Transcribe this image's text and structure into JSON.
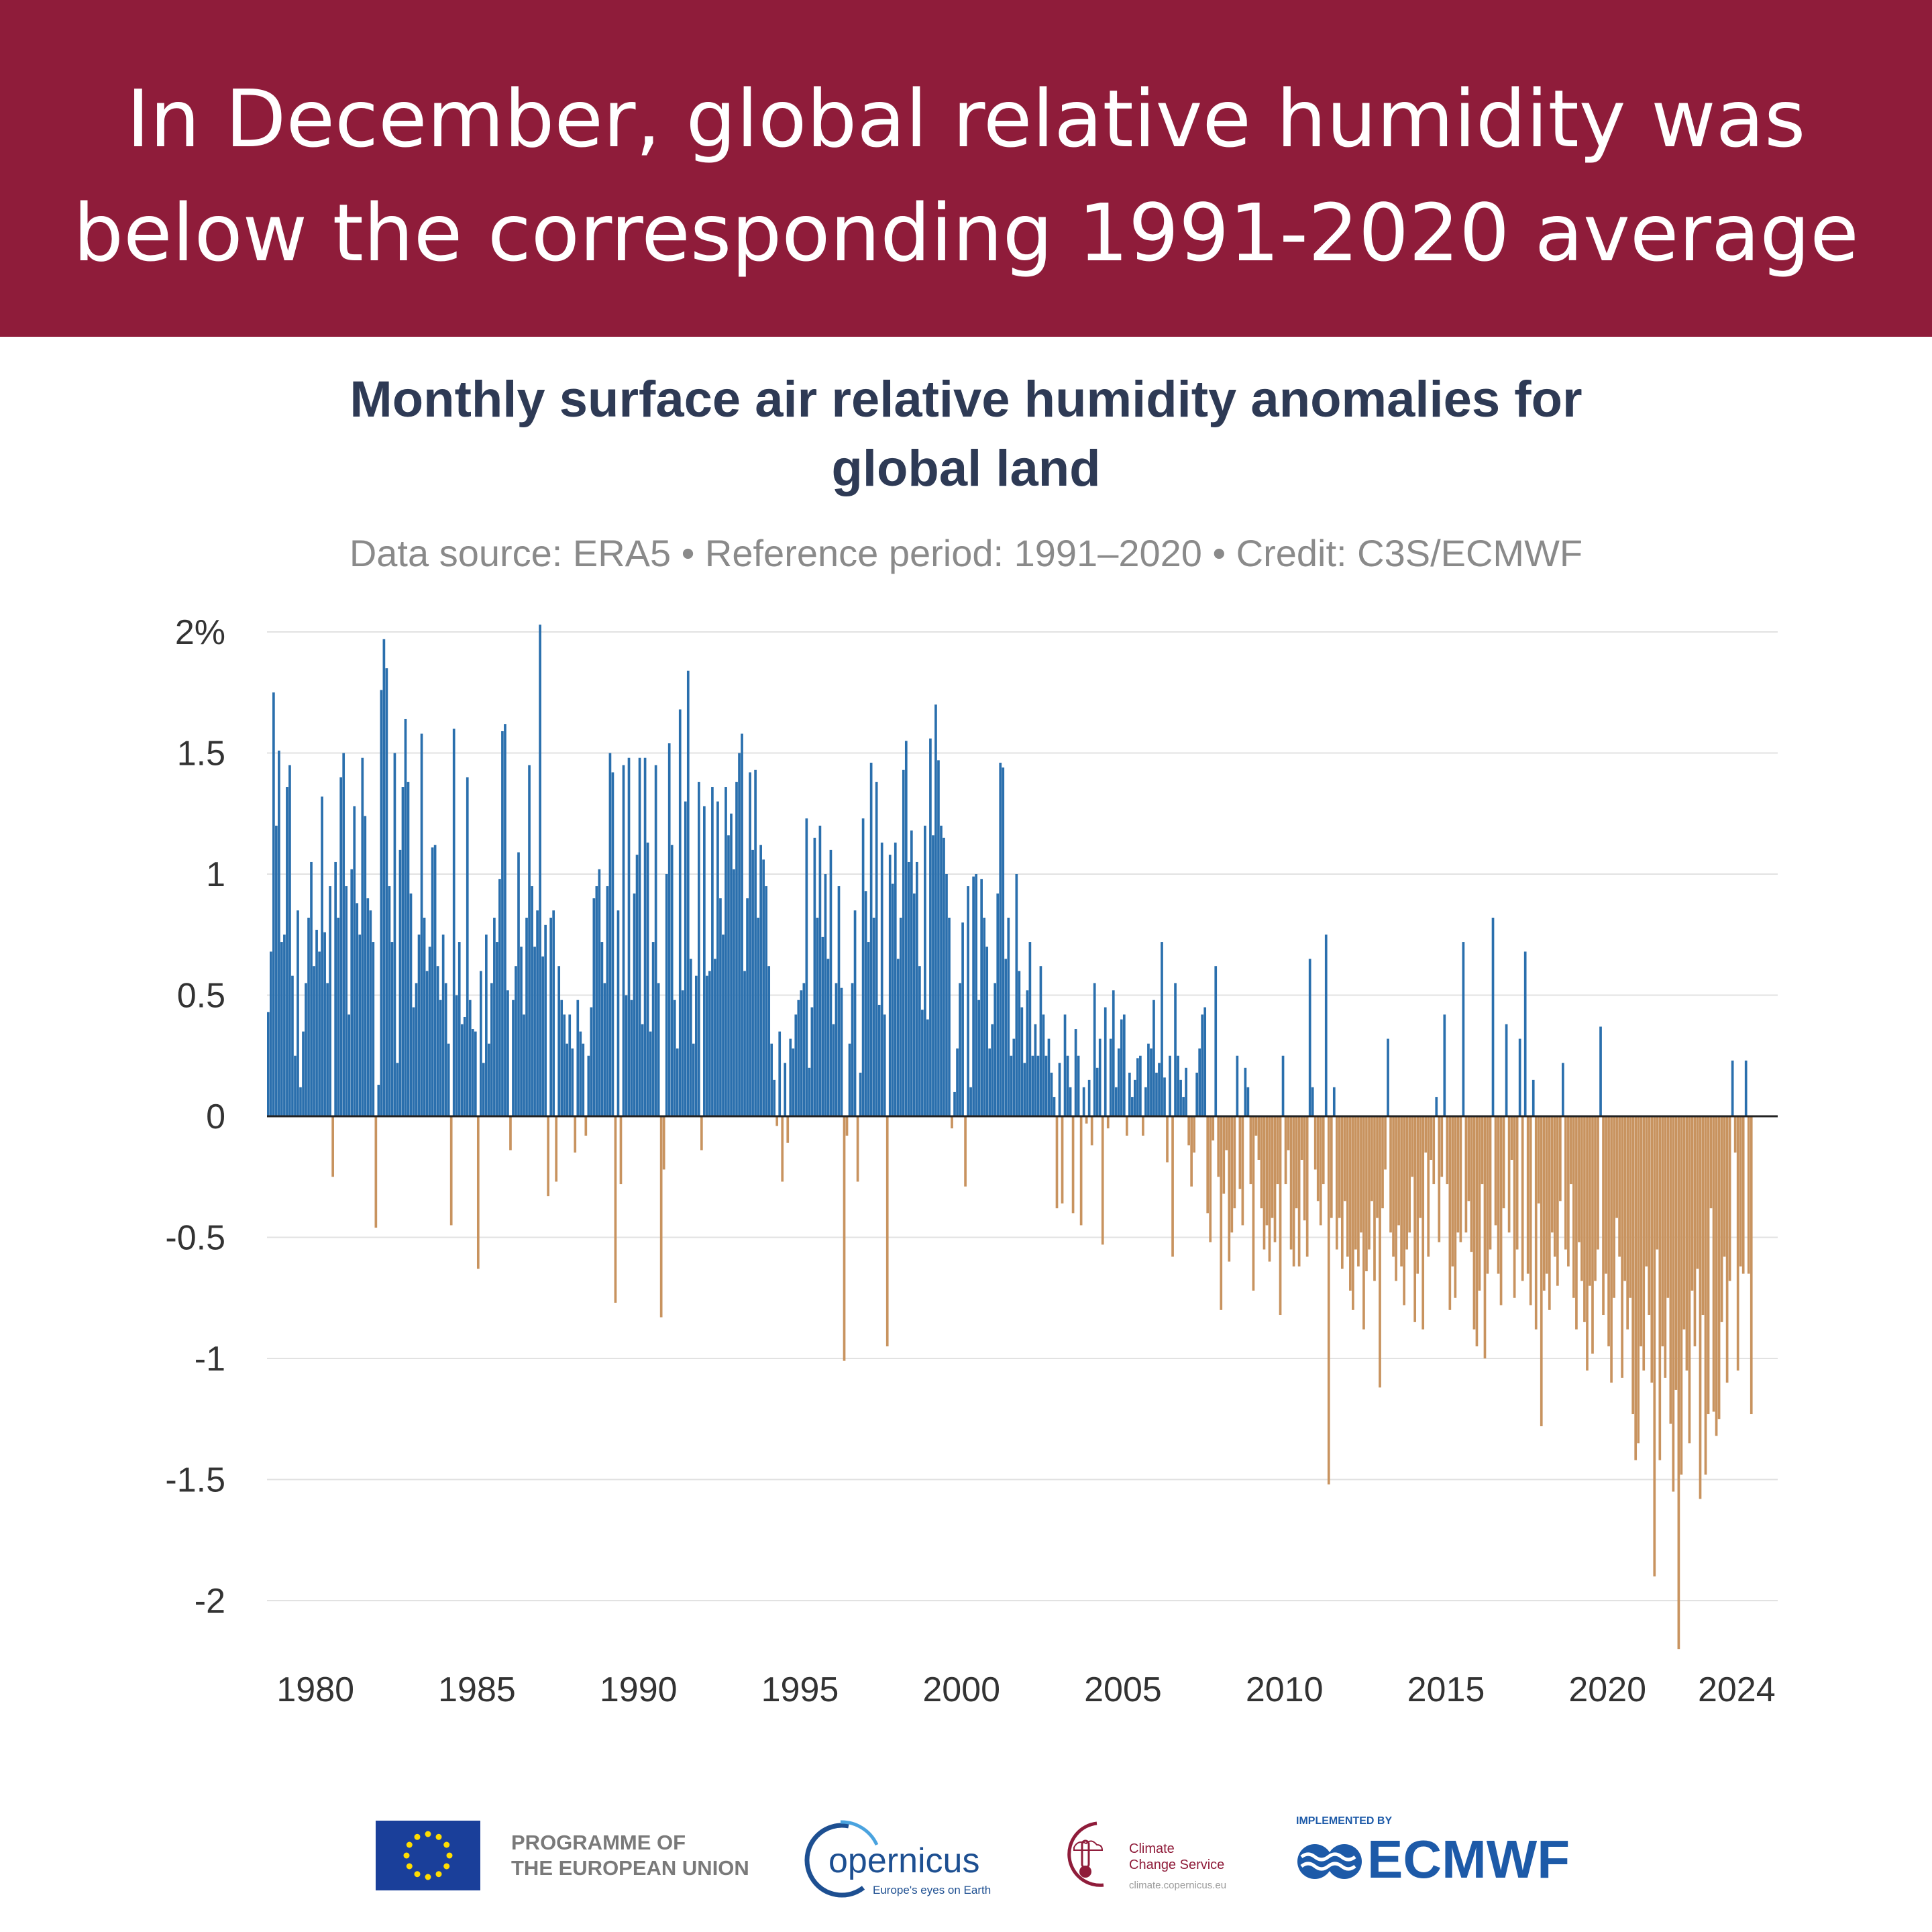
{
  "banner": {
    "line1": "In December, global relative humidity was",
    "line2": "below the corresponding 1991-2020 average",
    "background": "#8f1c3a"
  },
  "colors": {
    "positive": "#2a6fad",
    "negative": "#c8935f",
    "title": "#2e3a55",
    "gridline": "#e2e2e2",
    "zero_line": "#222222",
    "tick_label": "#333333"
  },
  "footer": {
    "eu_icon": "eu-flag-icon",
    "programme": [
      "PROGRAMME OF",
      "THE EUROPEAN UNION"
    ],
    "copernicus_name": "opernicus",
    "copernicus_tagline": "Europe's eyes on Earth",
    "c3s_name_line1": "Climate",
    "c3s_name_line2": "Change Service",
    "c3s_url": "climate.copernicus.eu",
    "ecmwf_implemented": "IMPLEMENTED BY",
    "ecmwf_name": "ECMWF"
  },
  "chart_data": {
    "type": "bar",
    "title": "Monthly surface air relative humidity anomalies for",
    "title_line2": "global land",
    "subtitle": "Data source: ERA5 • Reference period: 1991–2020 • Credit: C3S/ECMWF",
    "xlabel": "",
    "ylabel": "",
    "ylim": [
      -2.2,
      2.0
    ],
    "y_ticks": [
      2,
      1.5,
      1,
      0.5,
      0,
      -0.5,
      -1,
      -1.5,
      -2
    ],
    "y_tick_labels": [
      "2%",
      "1.5",
      "1",
      "0.5",
      "0",
      "-0.5",
      "-1",
      "-1.5",
      "-2"
    ],
    "x_ticks": [
      1980,
      1985,
      1990,
      1995,
      2000,
      2005,
      2010,
      2015,
      2020,
      2024
    ],
    "x_tick_labels": [
      "1980",
      "1985",
      "1990",
      "1995",
      "2000",
      "2005",
      "2010",
      "2015",
      "2020",
      "2024"
    ],
    "grid": true,
    "legend": "none",
    "start": "1979-01",
    "end": "2024-12",
    "annual_values": {
      "1979": [
        0.43,
        0.68,
        1.75,
        1.2,
        1.51,
        0.72,
        0.75,
        1.36,
        1.45,
        0.58,
        0.25,
        0.85
      ],
      "1980": [
        0.12,
        0.35,
        0.55,
        0.82,
        1.05,
        0.62,
        0.77,
        0.68,
        1.32,
        0.76,
        0.55,
        0.95
      ],
      "1981": [
        -0.25,
        1.05,
        0.82,
        1.4,
        1.5,
        0.95,
        0.42,
        1.02,
        1.28,
        0.88,
        0.75,
        1.48
      ],
      "1982": [
        1.24,
        0.9,
        0.85,
        0.72,
        -0.46,
        0.13,
        1.76,
        1.97,
        1.85,
        0.95,
        0.72,
        1.5
      ],
      "1983": [
        0.22,
        1.1,
        1.36,
        1.64,
        1.38,
        0.92,
        0.45,
        0.55,
        0.75,
        1.58,
        0.82,
        0.6
      ],
      "1984": [
        0.7,
        1.11,
        1.12,
        0.62,
        0.48,
        0.75,
        0.55,
        0.3,
        -0.45,
        1.6,
        0.5,
        0.72
      ],
      "1985": [
        0.38,
        0.41,
        1.4,
        0.48,
        0.36,
        0.35,
        -0.63,
        0.6,
        0.22,
        0.75,
        0.3,
        0.55
      ],
      "1986": [
        0.82,
        0.72,
        0.98,
        1.59,
        1.62,
        0.52,
        -0.14,
        0.48,
        0.62,
        1.09,
        0.7,
        0.42
      ],
      "1987": [
        0.82,
        1.45,
        0.95,
        0.7,
        0.85,
        2.03,
        0.66,
        0.79,
        -0.33,
        0.82,
        0.85,
        -0.27
      ],
      "1988": [
        0.62,
        0.48,
        0.42,
        0.3,
        0.42,
        0.28,
        -0.15,
        0.48,
        0.35,
        0.3,
        -0.08,
        0.25
      ],
      "1989": [
        0.45,
        0.9,
        0.95,
        1.02,
        0.72,
        0.55,
        0.95,
        1.5,
        1.42,
        -0.77,
        0.85,
        -0.28
      ],
      "1990": [
        1.45,
        0.5,
        1.48,
        0.48,
        0.92,
        1.08,
        1.48,
        0.38,
        1.48,
        1.13,
        0.35,
        0.72
      ],
      "1991": [
        1.45,
        0.55,
        -0.83,
        -0.22,
        1.0,
        1.54,
        1.12,
        0.48,
        0.28,
        1.68,
        0.52,
        1.3
      ],
      "1992": [
        1.84,
        0.65,
        0.3,
        0.58,
        1.38,
        -0.14,
        1.28,
        0.58,
        0.6,
        1.36,
        0.65,
        1.3
      ],
      "1993": [
        0.9,
        0.75,
        1.36,
        1.16,
        1.25,
        1.02,
        1.38,
        1.5,
        1.58,
        0.6,
        0.9,
        1.42
      ],
      "1994": [
        1.1,
        1.43,
        0.82,
        1.12,
        1.06,
        0.95,
        0.62,
        0.3,
        0.15,
        -0.04,
        0.35,
        -0.27
      ],
      "1995": [
        0.22,
        -0.11,
        0.32,
        0.28,
        0.42,
        0.48,
        0.52,
        0.55,
        1.23,
        0.2,
        0.45,
        1.15
      ],
      "1996": [
        0.82,
        1.2,
        0.74,
        1.0,
        0.65,
        1.1,
        0.38,
        0.55,
        0.95,
        0.53,
        -1.01,
        -0.08
      ],
      "1997": [
        0.3,
        0.55,
        0.85,
        -0.27,
        0.18,
        1.23,
        0.93,
        0.72,
        1.46,
        0.82,
        1.38,
        0.46
      ],
      "1998": [
        1.13,
        0.42,
        -0.95,
        1.08,
        0.96,
        1.13,
        0.65,
        0.82,
        1.43,
        1.55,
        1.05,
        1.18
      ],
      "1999": [
        0.92,
        1.05,
        0.62,
        0.44,
        1.2,
        0.4,
        1.56,
        1.16,
        1.7,
        1.47,
        1.2,
        1.15
      ],
      "2000": [
        1.0,
        0.82,
        -0.05,
        0.1,
        0.28,
        0.55,
        0.8,
        -0.29,
        0.95,
        0.12,
        0.99,
        1.0
      ],
      "2001": [
        0.48,
        0.98,
        0.82,
        0.7,
        0.28,
        0.38,
        0.55,
        0.92,
        1.46,
        1.44,
        0.65,
        0.82
      ],
      "2002": [
        0.25,
        0.32,
        1.0,
        0.6,
        0.45,
        0.22,
        0.52,
        0.72,
        0.25,
        0.38,
        0.25,
        0.62
      ],
      "2003": [
        0.42,
        0.25,
        0.32,
        0.18,
        0.08,
        -0.38,
        0.22,
        -0.36,
        0.42,
        0.25,
        0.12,
        -0.4
      ],
      "2004": [
        0.36,
        0.25,
        -0.45,
        0.12,
        -0.03,
        0.15,
        -0.12,
        0.55,
        0.2,
        0.32,
        -0.53,
        0.45
      ],
      "2005": [
        -0.05,
        0.32,
        0.52,
        0.12,
        0.28,
        0.4,
        0.42,
        -0.08,
        0.18,
        0.08,
        0.15,
        0.24
      ],
      "2006": [
        0.25,
        -0.08,
        0.12,
        0.3,
        0.28,
        0.48,
        0.18,
        0.22,
        0.72,
        0.16,
        -0.19,
        0.25
      ],
      "2007": [
        -0.58,
        0.55,
        0.25,
        0.15,
        0.08,
        0.2,
        -0.12,
        -0.29,
        -0.15,
        0.18,
        0.28,
        0.42
      ],
      "2008": [
        0.45,
        -0.4,
        -0.52,
        -0.1,
        0.62,
        -0.25,
        -0.8,
        -0.32,
        -0.14,
        -0.6,
        -0.48,
        -0.38
      ],
      "2009": [
        0.25,
        -0.3,
        -0.45,
        0.2,
        0.12,
        -0.28,
        -0.72,
        -0.08,
        -0.18,
        -0.38,
        -0.55,
        -0.45
      ],
      "2010": [
        -0.6,
        -0.42,
        -0.52,
        -0.28,
        -0.82,
        0.25,
        -0.28,
        -0.14,
        -0.55,
        -0.62,
        -0.38,
        -0.62
      ],
      "2011": [
        -0.18,
        -0.43,
        -0.58,
        0.65,
        0.12,
        -0.22,
        -0.35,
        -0.45,
        -0.28,
        0.75,
        -1.52,
        -0.42
      ],
      "2012": [
        0.12,
        -0.55,
        -0.42,
        -0.63,
        -0.35,
        -0.58,
        -0.72,
        -0.8,
        -0.55,
        -0.62,
        -0.48,
        -0.88
      ],
      "2013": [
        -0.64,
        -0.55,
        -0.35,
        -0.68,
        -0.42,
        -1.12,
        -0.38,
        -0.22,
        0.32,
        -0.48,
        -0.58,
        -0.68
      ],
      "2014": [
        -0.45,
        -0.62,
        -0.78,
        -0.55,
        -0.48,
        -0.25,
        -0.85,
        -0.65,
        -0.42,
        -0.88,
        -0.15,
        -0.58
      ],
      "2015": [
        -0.18,
        -0.28,
        0.08,
        -0.52,
        -0.25,
        0.42,
        -0.28,
        -0.8,
        -0.62,
        -0.75,
        -0.48,
        -0.52
      ],
      "2016": [
        0.72,
        -0.48,
        -0.35,
        -0.56,
        -0.88,
        -0.95,
        -0.72,
        -0.28,
        -1.0,
        -0.65,
        -0.55,
        0.82
      ],
      "2017": [
        -0.45,
        -0.65,
        -0.78,
        -0.38,
        0.38,
        -0.48,
        -0.18,
        -0.75,
        -0.55,
        0.32,
        -0.68,
        0.68
      ],
      "2018": [
        -0.65,
        -0.78,
        0.15,
        -0.88,
        -0.36,
        -1.28,
        -0.72,
        -0.65,
        -0.8,
        -0.48,
        -0.58,
        -0.7
      ],
      "2019": [
        -0.35,
        0.22,
        -0.55,
        -0.62,
        -0.28,
        -0.75,
        -0.88,
        -0.52,
        -0.68,
        -0.85,
        -1.05,
        -0.7
      ],
      "2020": [
        -0.98,
        -0.68,
        -0.55,
        0.37,
        -0.82,
        -0.65,
        -0.95,
        -1.1,
        -0.75,
        -0.42,
        -0.58,
        -1.08
      ],
      "2021": [
        -0.68,
        -0.88,
        -0.75,
        -1.23,
        -1.42,
        -1.35,
        -0.95,
        -1.05,
        -0.62,
        -0.82,
        -1.1,
        -1.9
      ],
      "2022": [
        -0.55,
        -1.42,
        -0.95,
        -1.08,
        -0.75,
        -1.27,
        -1.55,
        -1.13,
        -2.2,
        -1.48,
        -0.88,
        -1.05
      ],
      "2023": [
        -1.35,
        -0.72,
        -0.95,
        -0.63,
        -1.58,
        -0.82,
        -1.48,
        -1.23,
        -0.38,
        -1.22,
        -1.32,
        -1.25
      ],
      "2024": [
        -0.85,
        -0.58,
        -1.1,
        -0.68,
        0.23,
        -0.15,
        -1.05,
        -0.62,
        -0.65,
        0.23,
        -0.65,
        -1.23
      ]
    }
  }
}
